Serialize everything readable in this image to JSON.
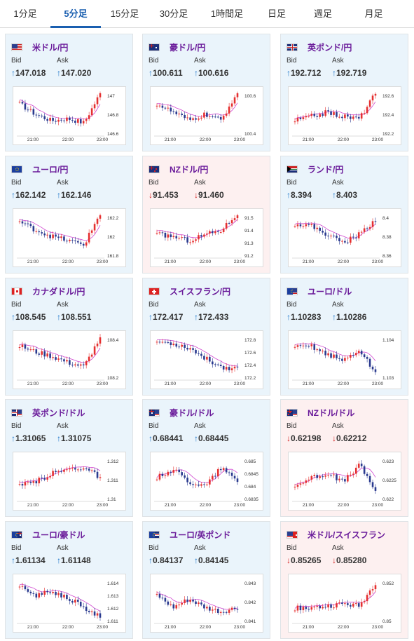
{
  "tabs": [
    {
      "label": "1分足",
      "active": false
    },
    {
      "label": "5分足",
      "active": true
    },
    {
      "label": "15分足",
      "active": false
    },
    {
      "label": "30分足",
      "active": false
    },
    {
      "label": "1時間足",
      "active": false
    },
    {
      "label": "日足",
      "active": false
    },
    {
      "label": "週足",
      "active": false
    },
    {
      "label": "月足",
      "active": false
    }
  ],
  "bid_label": "Bid",
  "ask_label": "Ask",
  "x_ticks": [
    "21:00",
    "22:00",
    "23:00"
  ],
  "colors": {
    "up": "#1a74c9",
    "down": "#d32020",
    "candle_up": "#e53030",
    "candle_down": "#2a3a8f",
    "ma": "#d046d0"
  },
  "cards": [
    {
      "name": "米ドル/円",
      "flag": "us-flag",
      "trend": "up",
      "bid": "147.018",
      "ask": "147.020",
      "y_ticks": [
        "147",
        "146.8",
        "146.6"
      ]
    },
    {
      "name": "豪ドル/円",
      "flag": "au-flag",
      "trend": "up",
      "bid": "100.611",
      "ask": "100.616",
      "y_ticks": [
        "100.6",
        "100.4"
      ]
    },
    {
      "name": "英ポンド/円",
      "flag": "gb-flag",
      "trend": "up",
      "bid": "192.712",
      "ask": "192.719",
      "y_ticks": [
        "192.6",
        "192.4",
        "192.2"
      ]
    },
    {
      "name": "ユーロ/円",
      "flag": "eu-flag",
      "trend": "up",
      "bid": "162.142",
      "ask": "162.146",
      "y_ticks": [
        "162.2",
        "162",
        "161.8"
      ]
    },
    {
      "name": "NZドル/円",
      "flag": "nz-flag",
      "trend": "down",
      "bid": "91.453",
      "ask": "91.460",
      "y_ticks": [
        "91.5",
        "91.4",
        "91.3",
        "91.2"
      ]
    },
    {
      "name": "ランド/円",
      "flag": "za-flag",
      "trend": "up",
      "bid": "8.394",
      "ask": "8.403",
      "y_ticks": [
        "8.4",
        "8.38",
        "8.36"
      ]
    },
    {
      "name": "カナダドル/円",
      "flag": "ca-flag",
      "trend": "up",
      "bid": "108.545",
      "ask": "108.551",
      "y_ticks": [
        "108.4",
        "108.2"
      ]
    },
    {
      "name": "スイスフラン/円",
      "flag": "ch-flag",
      "trend": "up",
      "bid": "172.417",
      "ask": "172.433",
      "y_ticks": [
        "172.8",
        "172.6",
        "172.4",
        "172.2"
      ]
    },
    {
      "name": "ユーロ/ドル",
      "flag": "eu-us-flag",
      "trend": "up",
      "bid": "1.10283",
      "ask": "1.10286",
      "y_ticks": [
        "1.104",
        "1.103"
      ]
    },
    {
      "name": "英ポンド/ドル",
      "flag": "gb-us-flag",
      "trend": "up",
      "bid": "1.31065",
      "ask": "1.31075",
      "y_ticks": [
        "1.312",
        "1.311",
        "1.31"
      ]
    },
    {
      "name": "豪ドル/ドル",
      "flag": "au-us-flag",
      "trend": "up",
      "bid": "0.68441",
      "ask": "0.68445",
      "y_ticks": [
        "0.685",
        "0.6845",
        "0.684",
        "0.6835"
      ]
    },
    {
      "name": "NZドル/ドル",
      "flag": "nz-us-flag",
      "trend": "down",
      "bid": "0.62198",
      "ask": "0.62212",
      "y_ticks": [
        "0.623",
        "0.6225",
        "0.622"
      ]
    },
    {
      "name": "ユーロ/豪ドル",
      "flag": "eu-au-flag",
      "trend": "up",
      "bid": "1.61134",
      "ask": "1.61148",
      "y_ticks": [
        "1.614",
        "1.613",
        "1.612",
        "1.611"
      ]
    },
    {
      "name": "ユーロ/英ポンド",
      "flag": "eu-gb-flag",
      "trend": "up",
      "bid": "0.84137",
      "ask": "0.84145",
      "y_ticks": [
        "0.843",
        "0.842",
        "0.841"
      ]
    },
    {
      "name": "米ドル/スイスフラン",
      "flag": "us-ch-flag",
      "trend": "down",
      "bid": "0.85265",
      "ask": "0.85280",
      "y_ticks": [
        "0.852",
        "0.85"
      ]
    }
  ]
}
